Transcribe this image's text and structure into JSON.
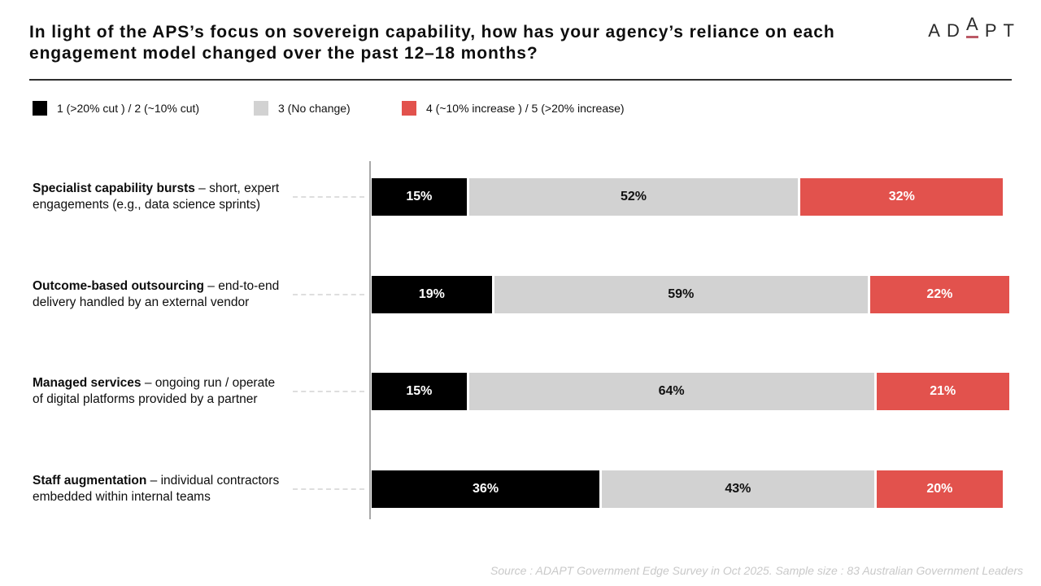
{
  "page": {
    "title": "In light of the APS’s focus on sovereign capability, how has your agency’s reliance on each engagement model changed over the past 12–18 months?",
    "logo_text": "ADAPT",
    "source_note": "Source : ADAPT Government Edge Survey in Oct 2025. Sample size : 83 Australian Government Leaders"
  },
  "colors": {
    "cut": "#000000",
    "no_change": "#d2d2d2",
    "increase": "#e2524d",
    "logo_accent": "#bb5a66",
    "axis_line": "#a8a8a8",
    "connector": "#dedede"
  },
  "chart_data": {
    "type": "bar",
    "orientation": "horizontal_stacked",
    "unit": "percent",
    "xlim": [
      0,
      100
    ],
    "value_labels": "inside",
    "legend_position": "top-left",
    "categories": [
      {
        "name": "Specialist capability bursts",
        "description": "– short, expert engagements (e.g., data science sprints)"
      },
      {
        "name": "Outcome-based outsourcing",
        "description": "– end-to-end delivery handled by an external vendor"
      },
      {
        "name": "Managed services",
        "description": "– ongoing run / operate of digital platforms provided by a partner"
      },
      {
        "name": "Staff augmentation",
        "description": "– individual contractors embedded within internal teams"
      }
    ],
    "series": [
      {
        "name": "1 (>20% cut ) / 2 (~10% cut)",
        "color": "#000000",
        "text_color": "#ffffff",
        "values": [
          15,
          19,
          15,
          36
        ]
      },
      {
        "name": "3 (No change)",
        "color": "#d2d2d2",
        "text_color": "#111111",
        "values": [
          52,
          59,
          64,
          43
        ]
      },
      {
        "name": "4 (~10% increase ) / 5 (>20% increase)",
        "color": "#e2524d",
        "text_color": "#ffffff",
        "values": [
          32,
          22,
          21,
          20
        ]
      }
    ]
  }
}
